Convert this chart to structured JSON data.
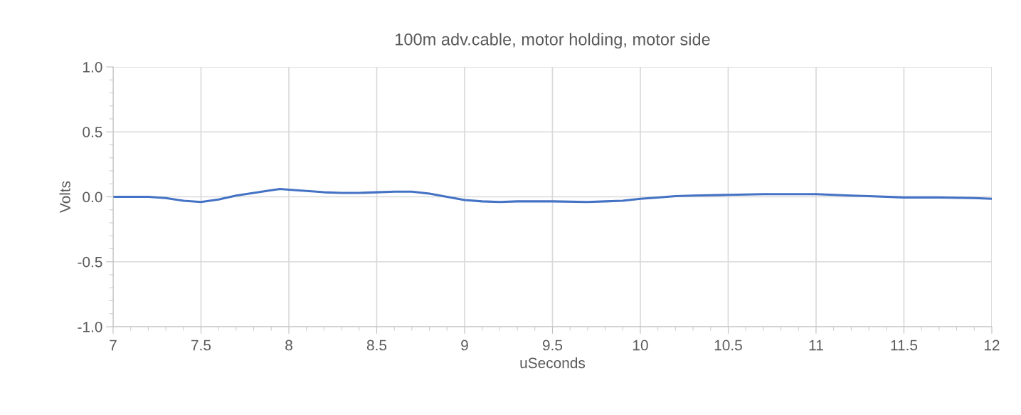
{
  "chart_data": {
    "type": "line",
    "title": "100m adv.cable, motor holding, motor side",
    "xlabel": "uSeconds",
    "ylabel": "Volts",
    "series": [
      {
        "color": "#4472c4",
        "x": [
          7.0,
          7.1,
          7.2,
          7.3,
          7.4,
          7.5,
          7.6,
          7.7,
          7.8,
          7.9,
          7.95,
          8.0,
          8.1,
          8.2,
          8.3,
          8.4,
          8.5,
          8.6,
          8.7,
          8.8,
          8.9,
          9.0,
          9.1,
          9.2,
          9.3,
          9.5,
          9.7,
          9.8,
          9.9,
          10.0,
          10.1,
          10.2,
          10.3,
          10.5,
          10.7,
          11.0,
          11.1,
          11.2,
          11.3,
          11.5,
          11.7,
          11.9,
          12.0
        ],
        "values": [
          0.0,
          0.0,
          0.0,
          -0.01,
          -0.03,
          -0.04,
          -0.02,
          0.01,
          0.03,
          0.05,
          0.06,
          0.055,
          0.045,
          0.035,
          0.03,
          0.03,
          0.035,
          0.04,
          0.04,
          0.025,
          0.0,
          -0.025,
          -0.035,
          -0.04,
          -0.035,
          -0.035,
          -0.04,
          -0.035,
          -0.03,
          -0.015,
          -0.005,
          0.005,
          0.01,
          0.015,
          0.02,
          0.02,
          0.015,
          0.01,
          0.005,
          -0.005,
          -0.005,
          -0.01,
          -0.015
        ]
      }
    ],
    "xlim": [
      7,
      12
    ],
    "xticks": [
      7,
      7.5,
      8,
      8.5,
      9,
      9.5,
      10,
      10.5,
      11,
      11.5,
      12
    ],
    "ylim": [
      -1.0,
      1.0
    ],
    "yticks": [
      {
        "value": -1.0,
        "label": "-1.0"
      },
      {
        "value": -0.5,
        "label": "-0.5"
      },
      {
        "value": 0.0,
        "label": "0.0"
      },
      {
        "value": 0.5,
        "label": "0.5"
      },
      {
        "value": 1.0,
        "label": "1.0"
      }
    ],
    "grid": true,
    "legend": false,
    "marker": "none",
    "line_style": "solid"
  }
}
